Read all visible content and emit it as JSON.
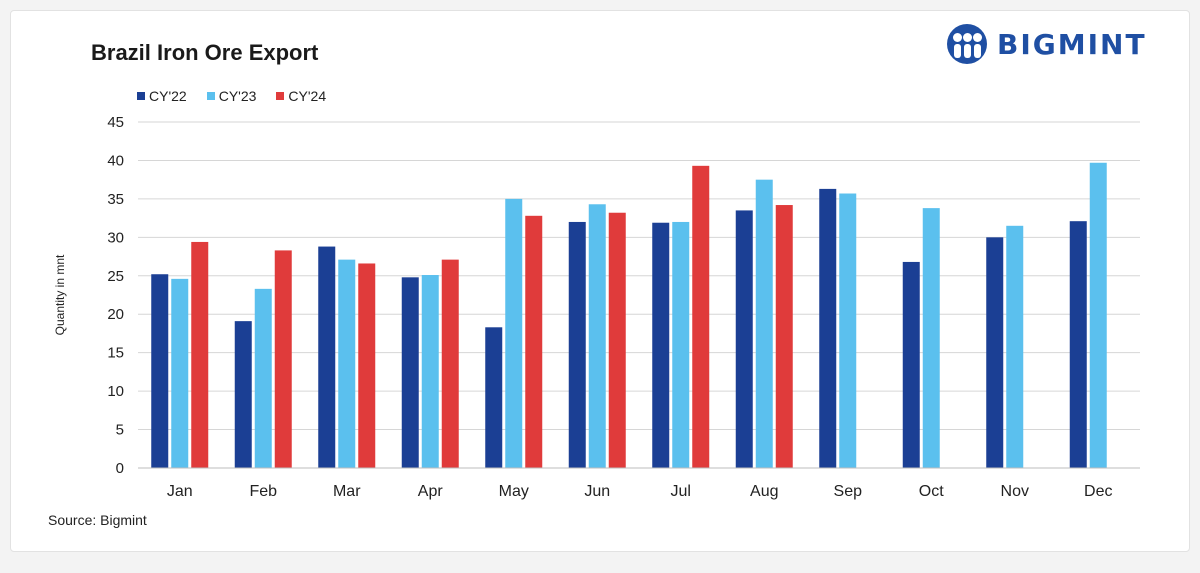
{
  "brand": {
    "name": "BIGMINT",
    "color": "#1f4fa3",
    "icon": "bigmint-logo-icon"
  },
  "source": "Source: Bigmint",
  "colors": {
    "cy22": "#1b3f94",
    "cy23": "#5bc0ee",
    "cy24": "#e03b3b",
    "grid": "#d6d6d6"
  },
  "chart_data": {
    "type": "bar",
    "title": "Brazil Iron Ore Export",
    "xlabel": "",
    "ylabel": "Quantity in mnt",
    "ylim": [
      0,
      45
    ],
    "yticks": [
      0,
      5,
      10,
      15,
      20,
      25,
      30,
      35,
      40,
      45
    ],
    "grid": true,
    "legend_position": "top-left",
    "categories": [
      "Jan",
      "Feb",
      "Mar",
      "Apr",
      "May",
      "Jun",
      "Jul",
      "Aug",
      "Sep",
      "Oct",
      "Nov",
      "Dec"
    ],
    "series": [
      {
        "name": "CY'22",
        "color": "#1b3f94",
        "values": [
          25.2,
          19.1,
          28.8,
          24.8,
          18.3,
          32.0,
          31.9,
          33.5,
          36.3,
          26.8,
          30.0,
          32.1
        ]
      },
      {
        "name": "CY'23",
        "color": "#5bc0ee",
        "values": [
          24.6,
          23.3,
          27.1,
          25.1,
          35.0,
          34.3,
          32.0,
          37.5,
          35.7,
          33.8,
          31.5,
          39.7
        ]
      },
      {
        "name": "CY'24",
        "color": "#e03b3b",
        "values": [
          29.4,
          28.3,
          26.6,
          27.1,
          32.8,
          33.2,
          39.3,
          34.2,
          null,
          null,
          null,
          null
        ]
      }
    ]
  }
}
